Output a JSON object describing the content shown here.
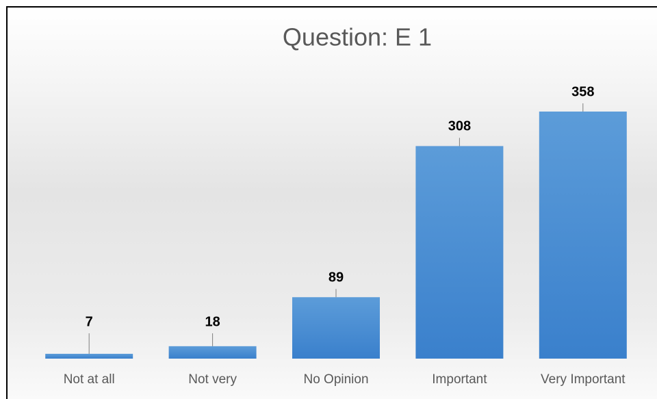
{
  "chart_data": {
    "type": "bar",
    "title": "Question: E 1",
    "categories": [
      "Not at all",
      "Not very",
      "No Opinion",
      "Important",
      "Very Important"
    ],
    "values": [
      7,
      18,
      89,
      308,
      358
    ],
    "color": "#4a8fd6"
  }
}
